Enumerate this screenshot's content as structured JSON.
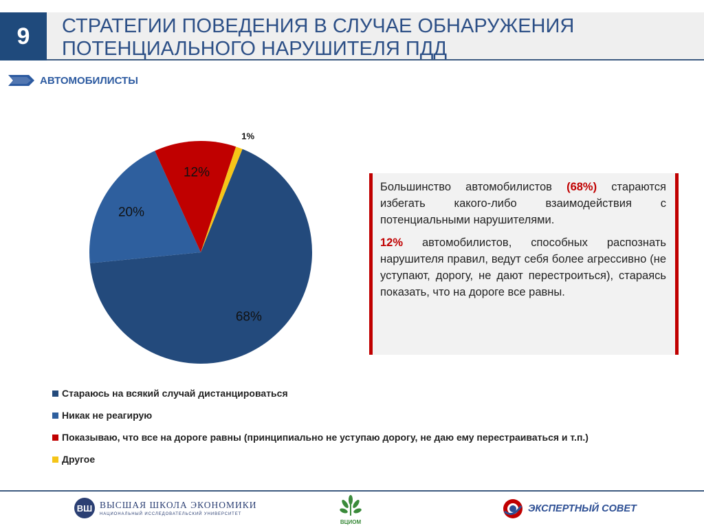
{
  "slide": {
    "number": "9",
    "title_line1": "СТРАТЕГИИ ПОВЕДЕНИЯ В СЛУЧАЕ ОБНАРУЖЕНИЯ",
    "title_line2": "ПОТЕНЦИАЛЬНОГО НАРУШИТЕЛЯ ПДД",
    "section": "АВТОМОБИЛИСТЫ"
  },
  "chart_data": {
    "type": "pie",
    "labels": [
      "Стараюсь на всякий случай дистанцироваться",
      "Никак не реагирую",
      "Показываю, что все на дороге равны (принципиально не уступаю дорогу, не даю ему перестраиваться и т.п.)",
      "Другое"
    ],
    "values": [
      68,
      20,
      12,
      1
    ],
    "value_labels": [
      "68%",
      "20%",
      "12%",
      "1%"
    ],
    "colors": [
      "#234a7c",
      "#2e5f9e",
      "#c00000",
      "#f5c518"
    ],
    "legend_position": "bottom"
  },
  "info": {
    "p1_pre": "Большинство автомобилистов ",
    "p1_hl": "(68%)",
    "p1_post": " стараются избегать какого-либо взаимодействия с потенциальными нарушителями.",
    "p2_hl": "12%",
    "p2_post": " автомобилистов, способных распознать нарушителя правил, ведут себя более агрессивно (не уступают, дорогу, не дают перестроиться), стараясь показать, что на дороге все равны."
  },
  "footer": {
    "hse_name": "ВЫСШАЯ ШКОЛА ЭКОНОМИКИ",
    "hse_sub": "НАЦИОНАЛЬНЫЙ ИССЛЕДОВАТЕЛЬСКИЙ УНИВЕРСИТЕТ",
    "wciom": "ВЦИОМ",
    "expert": "ЭКСПЕРТНЫЙ СОВЕТ"
  },
  "colors": {
    "brand_blue": "#1f4a7c",
    "accent_red": "#c00000"
  }
}
